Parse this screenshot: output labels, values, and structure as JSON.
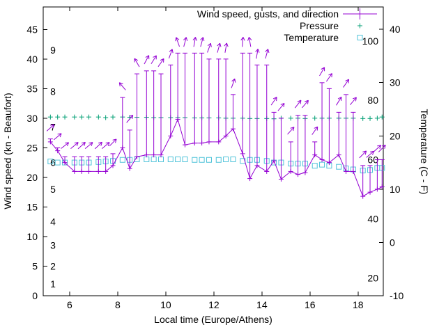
{
  "colors": {
    "wind": "#9400d3",
    "pressure": "#009e73",
    "temperature": "#4fc3d9",
    "axis": "#000000"
  },
  "chart_data": {
    "type": "line",
    "title": "",
    "xlabel": "Local time (Europe/Athens)",
    "ylabel_left": "Wind speed (kn - Beaufort)",
    "ylabel_right": "Temperature (C - F)",
    "legend": [
      {
        "label": "Wind speed, gusts, and direction",
        "series": "wind",
        "marker": "errorbar",
        "color": "#9400d3"
      },
      {
        "label": "Pressure",
        "series": "pressure",
        "marker": "plus",
        "color": "#009e73"
      },
      {
        "label": "Temperature",
        "series": "temperature",
        "marker": "square",
        "color": "#4fc3d9"
      }
    ],
    "axes": {
      "x_range": [
        4.9,
        19.05
      ],
      "y_left_range": [
        0,
        48.8
      ],
      "y_right_range_c": [
        -10,
        44.2
      ],
      "x_ticks": [
        6,
        8,
        10,
        12,
        14,
        16,
        18
      ],
      "y_left_ticks": [
        0,
        5,
        10,
        15,
        20,
        25,
        30,
        35,
        40,
        45
      ],
      "y_right_ticks_c": [
        -10,
        0,
        10,
        20,
        30,
        40
      ],
      "beaufort_labels": [
        {
          "label": "1",
          "kn": 2
        },
        {
          "label": "2",
          "kn": 5
        },
        {
          "label": "3",
          "kn": 8.5
        },
        {
          "label": "4",
          "kn": 12.5
        },
        {
          "label": "5",
          "kn": 18
        },
        {
          "label": "6",
          "kn": 22.5
        },
        {
          "label": "7",
          "kn": 28.5
        },
        {
          "label": "8",
          "kn": 34.5
        },
        {
          "label": "9",
          "kn": 41.5
        }
      ],
      "fahrenheit_labels": [
        {
          "label": "20",
          "f": 20
        },
        {
          "label": "40",
          "f": 40
        },
        {
          "label": "60",
          "f": 60
        },
        {
          "label": "80",
          "f": 80
        },
        {
          "label": "100",
          "f": 100
        }
      ],
      "grid": false,
      "legend_position": "top-right"
    },
    "x": [
      5.2,
      5.5,
      5.8,
      6.2,
      6.5,
      6.8,
      7.2,
      7.5,
      7.8,
      8.2,
      8.5,
      8.8,
      9.2,
      9.5,
      9.8,
      10.2,
      10.5,
      10.8,
      11.2,
      11.5,
      11.8,
      12.2,
      12.5,
      12.8,
      13.2,
      13.5,
      13.8,
      14.2,
      14.5,
      14.8,
      15.2,
      15.5,
      15.8,
      16.2,
      16.5,
      16.8,
      17.2,
      17.5,
      17.8,
      18.2,
      18.5,
      18.8,
      19.0
    ],
    "series": [
      {
        "name": "wind_speed_kn",
        "axis": "left",
        "values": [
          26,
          24.5,
          22.5,
          21,
          21,
          21,
          21,
          21,
          22,
          25,
          21.5,
          23.5,
          23.8,
          23.8,
          23.8,
          27,
          29.8,
          25.5,
          25.8,
          25.8,
          26,
          26,
          27,
          28.2,
          24,
          19.8,
          22,
          21,
          22.8,
          19.7,
          21,
          20.5,
          20.8,
          23.8,
          23,
          22.5,
          23.8,
          21,
          21,
          16.8,
          17.5,
          18,
          18.4
        ]
      },
      {
        "name": "wind_gust_kn",
        "axis": "left",
        "values": [
          26.5,
          25,
          23.5,
          23.5,
          23.5,
          23.5,
          23.5,
          23.5,
          24,
          33.5,
          28,
          37.5,
          38,
          38,
          37.5,
          39,
          41,
          41,
          41,
          41,
          40,
          40,
          40,
          34,
          41,
          41,
          39,
          39,
          31,
          30,
          26,
          30.5,
          30.5,
          26,
          36,
          35,
          31,
          34,
          31,
          22,
          22,
          23,
          23
        ]
      },
      {
        "name": "wind_direction_arrow_deg_cw_from_up",
        "values": [
          48,
          50,
          52,
          50,
          48,
          50,
          47,
          50,
          45,
          -40,
          40,
          -30,
          28,
          32,
          35,
          20,
          -20,
          15,
          10,
          15,
          20,
          15,
          10,
          20,
          5,
          -10,
          10,
          15,
          35,
          40,
          42,
          38,
          40,
          35,
          30,
          35,
          32,
          35,
          40,
          45,
          50,
          48,
          45
        ]
      },
      {
        "name": "pressure_inhg",
        "axis": "left",
        "values": [
          30.2,
          30.2,
          30.2,
          30.2,
          30.2,
          30.2,
          30.2,
          30.1,
          30.2,
          30.2,
          30.15,
          30.15,
          30.15,
          30.1,
          30.1,
          30.1,
          30.1,
          30.1,
          30.05,
          30.05,
          30.05,
          30.05,
          30.0,
          30.0,
          30.0,
          29.95,
          29.95,
          29.95,
          29.9,
          30.0,
          30.0,
          30.0,
          29.95,
          30.0,
          30.0,
          30.0,
          30.0,
          30.0,
          30.0,
          29.95,
          29.95,
          30.0,
          30.2
        ]
      },
      {
        "name": "temperature_c",
        "axis": "right",
        "values": [
          15.2,
          15.0,
          15.0,
          15.0,
          15.0,
          15.0,
          15.1,
          15.2,
          15.3,
          15.5,
          15.5,
          15.6,
          15.6,
          15.6,
          15.6,
          15.6,
          15.6,
          15.6,
          15.5,
          15.5,
          15.5,
          15.5,
          15.6,
          15.6,
          15.3,
          15.5,
          15.5,
          15.3,
          15.0,
          15.0,
          14.8,
          14.8,
          14.8,
          14.4,
          14.6,
          14.4,
          14.2,
          13.9,
          13.7,
          13.5,
          13.6,
          14.0,
          14.0
        ]
      }
    ]
  }
}
